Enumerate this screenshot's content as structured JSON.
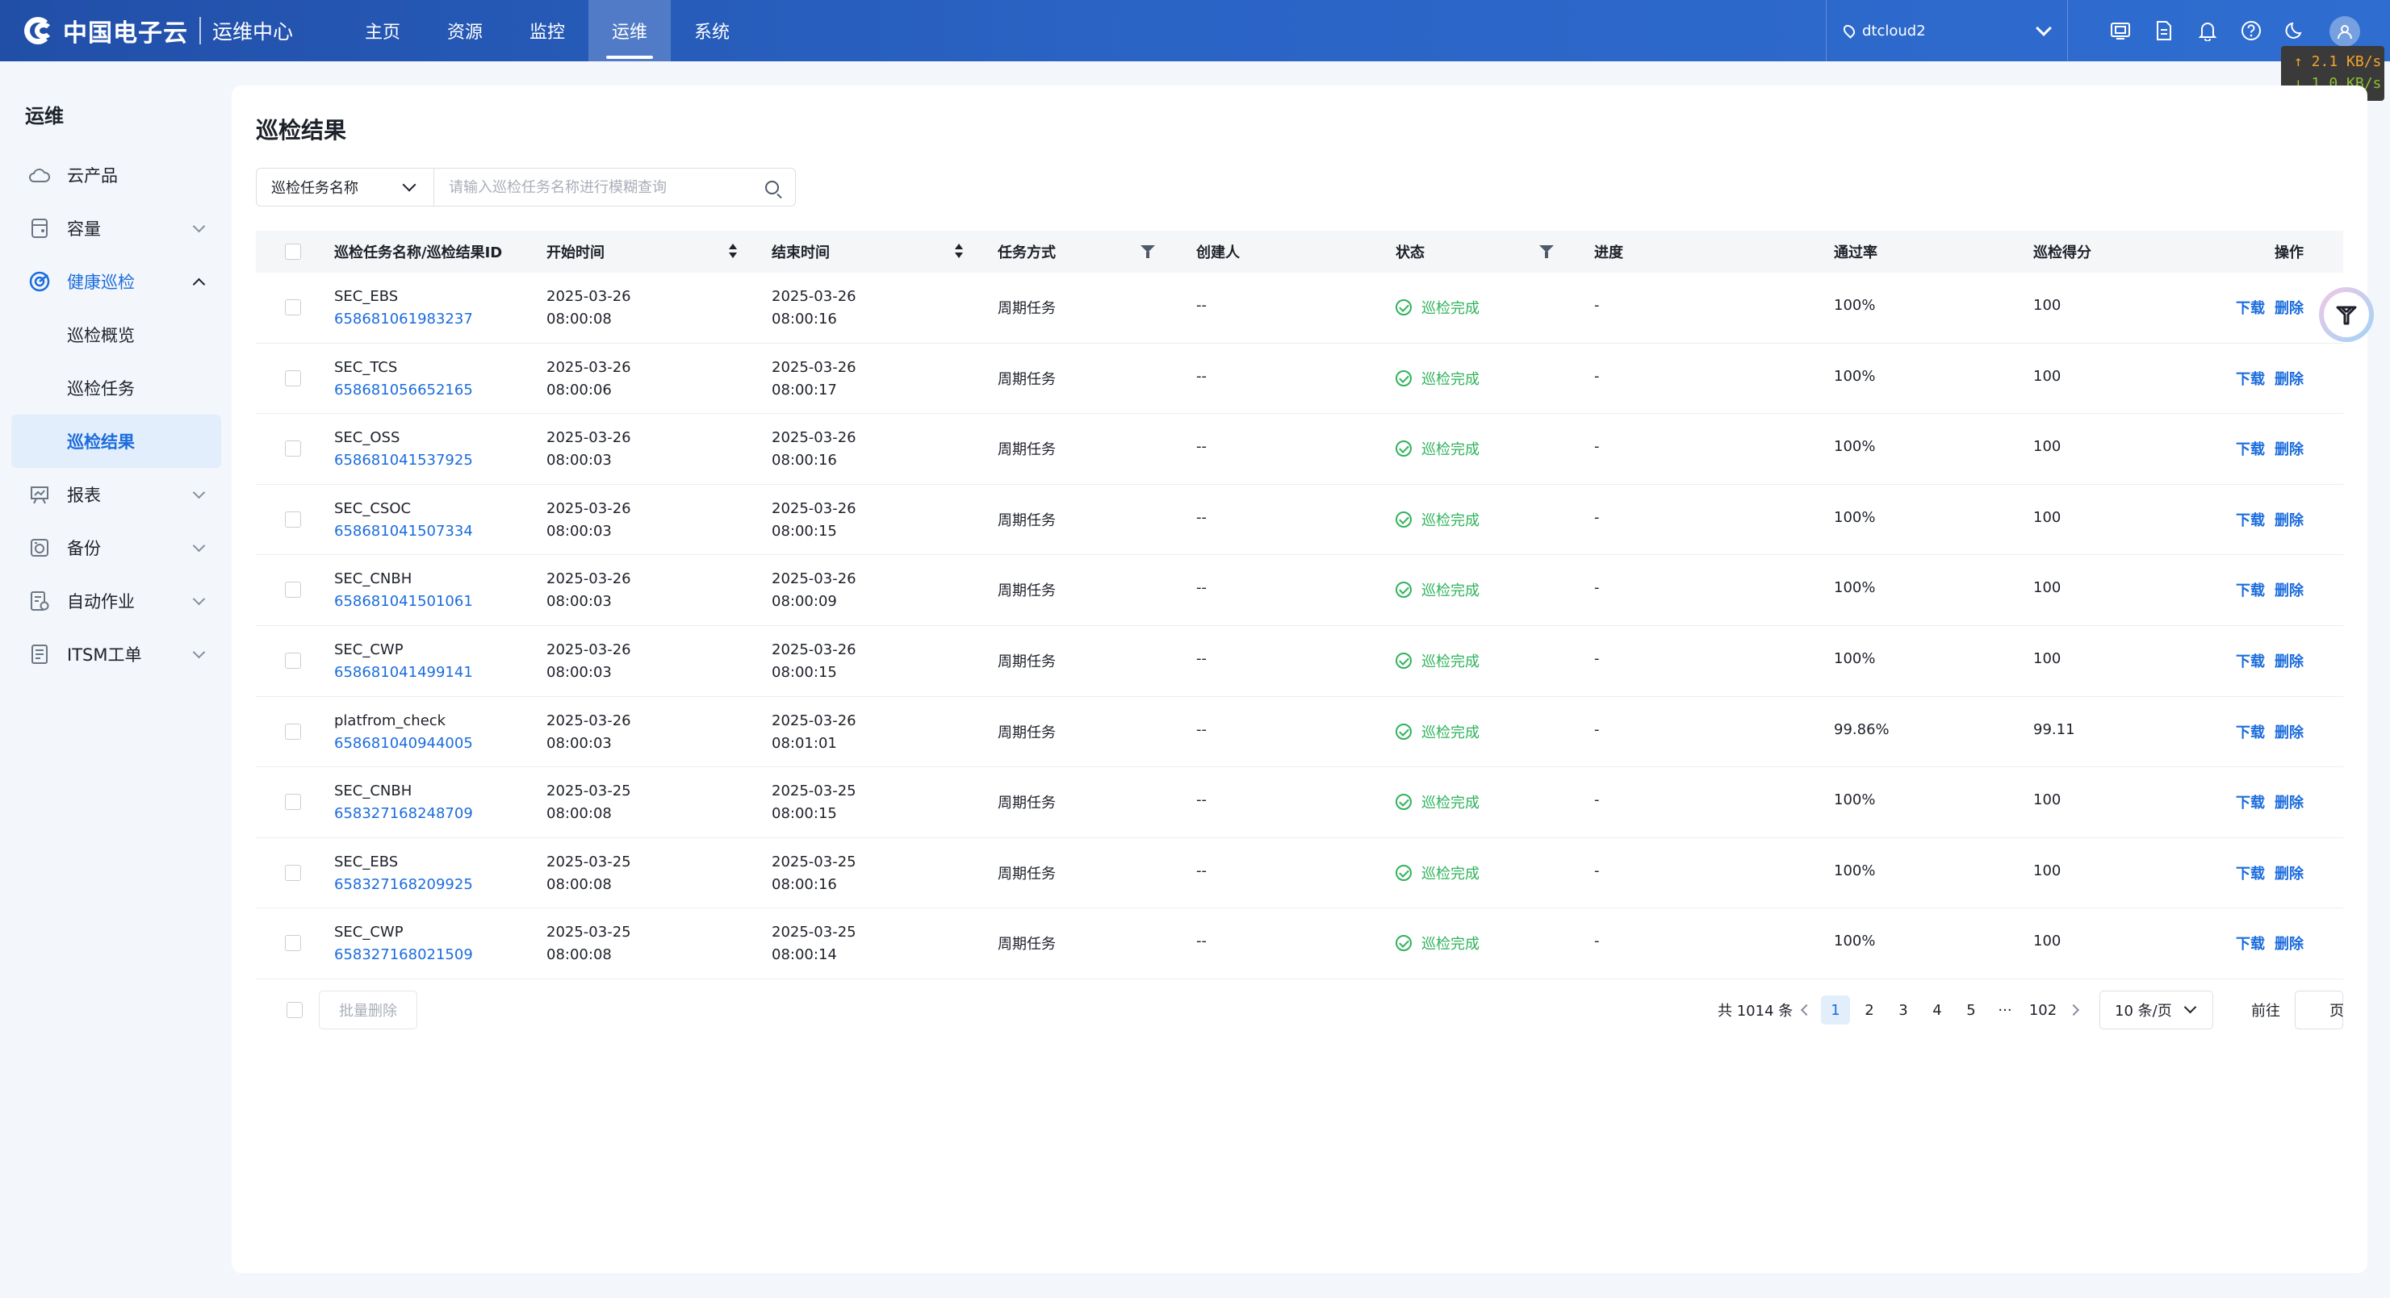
{
  "header": {
    "brand": "中国电子云",
    "subtitle": "运维中心",
    "nav": [
      {
        "label": "主页",
        "active": false
      },
      {
        "label": "资源",
        "active": false
      },
      {
        "label": "监控",
        "active": false
      },
      {
        "label": "运维",
        "active": true
      },
      {
        "label": "系统",
        "active": false
      }
    ],
    "region": "dtcloud2",
    "net_up": "↑ 2.1 KB/s",
    "net_down": "↓ 1.0 KB/s",
    "icons": [
      "screen-icon",
      "document-icon",
      "bell-icon",
      "help-icon",
      "moon-icon",
      "user-icon"
    ]
  },
  "sidebar": {
    "title": "运维",
    "items": [
      {
        "label": "云产品",
        "icon": "cloud-icon"
      },
      {
        "label": "容量",
        "icon": "database-icon"
      },
      {
        "label": "健康巡检",
        "icon": "target-icon"
      },
      {
        "label": "报表",
        "icon": "report-icon"
      },
      {
        "label": "备份",
        "icon": "backup-icon"
      },
      {
        "label": "自动作业",
        "icon": "automation-icon"
      },
      {
        "label": "ITSM工单",
        "icon": "ticket-icon"
      }
    ],
    "subitems": [
      {
        "label": "巡检概览",
        "active": false
      },
      {
        "label": "巡检任务",
        "active": false
      },
      {
        "label": "巡检结果",
        "active": true
      }
    ]
  },
  "page": {
    "title": "巡检结果",
    "filter_select": "巡检任务名称",
    "filter_placeholder": "请输入巡检任务名称进行模糊查询"
  },
  "table": {
    "columns": [
      "巡检任务名称/巡检结果ID",
      "开始时间",
      "结束时间",
      "任务方式",
      "创建人",
      "状态",
      "进度",
      "通过率",
      "巡检得分",
      "操作"
    ],
    "action_download": "下载",
    "action_delete": "删除",
    "rows": [
      {
        "name": "SEC_EBS",
        "id": "658681061983237",
        "start_date": "2025-03-26",
        "start_time": "08:00:08",
        "end_date": "2025-03-26",
        "end_time": "08:00:16",
        "mode": "周期任务",
        "creator": "--",
        "status": "巡检完成",
        "progress": "-",
        "pass_rate": "100%",
        "score": "100"
      },
      {
        "name": "SEC_TCS",
        "id": "658681056652165",
        "start_date": "2025-03-26",
        "start_time": "08:00:06",
        "end_date": "2025-03-26",
        "end_time": "08:00:17",
        "mode": "周期任务",
        "creator": "--",
        "status": "巡检完成",
        "progress": "-",
        "pass_rate": "100%",
        "score": "100"
      },
      {
        "name": "SEC_OSS",
        "id": "658681041537925",
        "start_date": "2025-03-26",
        "start_time": "08:00:03",
        "end_date": "2025-03-26",
        "end_time": "08:00:16",
        "mode": "周期任务",
        "creator": "--",
        "status": "巡检完成",
        "progress": "-",
        "pass_rate": "100%",
        "score": "100"
      },
      {
        "name": "SEC_CSOC",
        "id": "658681041507334",
        "start_date": "2025-03-26",
        "start_time": "08:00:03",
        "end_date": "2025-03-26",
        "end_time": "08:00:15",
        "mode": "周期任务",
        "creator": "--",
        "status": "巡检完成",
        "progress": "-",
        "pass_rate": "100%",
        "score": "100"
      },
      {
        "name": "SEC_CNBH",
        "id": "658681041501061",
        "start_date": "2025-03-26",
        "start_time": "08:00:03",
        "end_date": "2025-03-26",
        "end_time": "08:00:09",
        "mode": "周期任务",
        "creator": "--",
        "status": "巡检完成",
        "progress": "-",
        "pass_rate": "100%",
        "score": "100"
      },
      {
        "name": "SEC_CWP",
        "id": "658681041499141",
        "start_date": "2025-03-26",
        "start_time": "08:00:03",
        "end_date": "2025-03-26",
        "end_time": "08:00:15",
        "mode": "周期任务",
        "creator": "--",
        "status": "巡检完成",
        "progress": "-",
        "pass_rate": "100%",
        "score": "100"
      },
      {
        "name": "platfrom_check",
        "id": "658681040944005",
        "start_date": "2025-03-26",
        "start_time": "08:00:03",
        "end_date": "2025-03-26",
        "end_time": "08:01:01",
        "mode": "周期任务",
        "creator": "--",
        "status": "巡检完成",
        "progress": "-",
        "pass_rate": "99.86%",
        "score": "99.11"
      },
      {
        "name": "SEC_CNBH",
        "id": "658327168248709",
        "start_date": "2025-03-25",
        "start_time": "08:00:08",
        "end_date": "2025-03-25",
        "end_time": "08:00:15",
        "mode": "周期任务",
        "creator": "--",
        "status": "巡检完成",
        "progress": "-",
        "pass_rate": "100%",
        "score": "100"
      },
      {
        "name": "SEC_EBS",
        "id": "658327168209925",
        "start_date": "2025-03-25",
        "start_time": "08:00:08",
        "end_date": "2025-03-25",
        "end_time": "08:00:16",
        "mode": "周期任务",
        "creator": "--",
        "status": "巡检完成",
        "progress": "-",
        "pass_rate": "100%",
        "score": "100"
      },
      {
        "name": "SEC_CWP",
        "id": "658327168021509",
        "start_date": "2025-03-25",
        "start_time": "08:00:08",
        "end_date": "2025-03-25",
        "end_time": "08:00:14",
        "mode": "周期任务",
        "creator": "--",
        "status": "巡检完成",
        "progress": "-",
        "pass_rate": "100%",
        "score": "100"
      }
    ]
  },
  "footer": {
    "batch_delete": "批量删除",
    "total": "共 1014 条",
    "pages": [
      "1",
      "2",
      "3",
      "4",
      "5",
      "···",
      "102"
    ],
    "current_page": "1",
    "page_size": "10 条/页",
    "goto_label": "前往",
    "page_unit": "页"
  },
  "colors": {
    "primary": "#1b6cdd",
    "success": "#2eb35a",
    "header_start": "#214fa8",
    "header_end": "#2f6dd0"
  }
}
